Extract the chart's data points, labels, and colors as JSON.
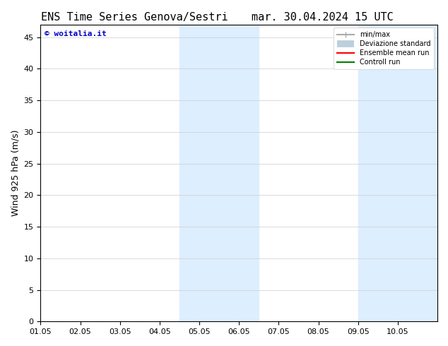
{
  "title_left": "ENS Time Series Genova/Sestri",
  "title_right": "mar. 30.04.2024 15 UTC",
  "ylabel": "Wind 925 hPa (m/s)",
  "watermark": "© woitalia.it",
  "xlim_left": 0,
  "xlim_right": 10,
  "ylim_bottom": 0,
  "ylim_top": 47,
  "yticks": [
    0,
    5,
    10,
    15,
    20,
    25,
    30,
    35,
    40,
    45
  ],
  "xtick_labels": [
    "01.05",
    "02.05",
    "03.05",
    "04.05",
    "05.05",
    "06.05",
    "07.05",
    "08.05",
    "09.05",
    "10.05"
  ],
  "xtick_positions": [
    0,
    1,
    2,
    3,
    4,
    5,
    6,
    7,
    8,
    9
  ],
  "shaded_bands": [
    {
      "x_start": 3.5,
      "x_end": 5.5,
      "color": "#ddeeff"
    },
    {
      "x_start": 8.0,
      "x_end": 10.0,
      "color": "#ddeeff"
    }
  ],
  "bg_color": "#ffffff",
  "plot_bg_color": "#ffffff",
  "watermark_color": "#0000cc",
  "title_fontsize": 11,
  "tick_fontsize": 8,
  "ylabel_fontsize": 9
}
